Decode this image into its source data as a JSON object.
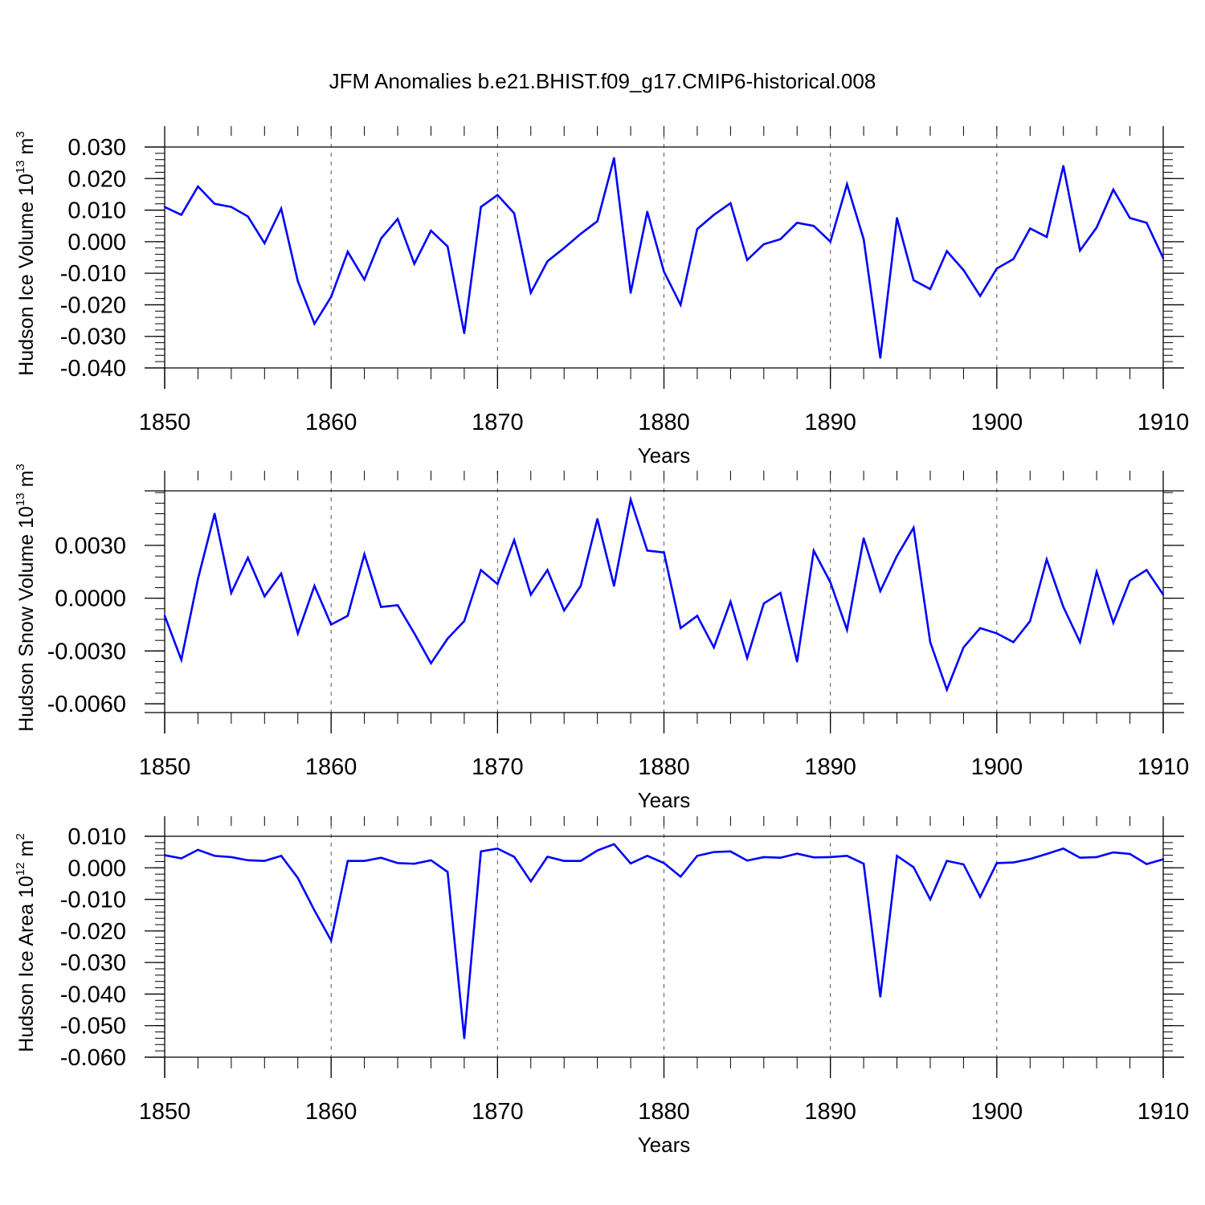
{
  "figure_title": "JFM Anomalies b.e21.BHIST.f09_g17.CMIP6-historical.008",
  "colors": {
    "series": "#0000ff",
    "axes": "#000000",
    "grid": "#555555"
  },
  "chart_data": [
    {
      "type": "line",
      "title": "JFM Anomalies b.e21.BHIST.f09_g17.CMIP6-historical.008",
      "ylabel": "Hudson Ice Volume",
      "yunit_base": "10",
      "yunit_exp": "13",
      "yunit_suffix": "m",
      "yunit_suffix_exp": "3",
      "xlabel": "Years",
      "xlim": [
        1850,
        1910
      ],
      "ylim": [
        -0.04,
        0.03
      ],
      "xticks": [
        "1850",
        "1860",
        "1870",
        "1880",
        "1890",
        "1900",
        "1910"
      ],
      "yticks": [
        "0.030",
        "0.020",
        "0.010",
        "0.000",
        "-0.010",
        "-0.020",
        "-0.030",
        "-0.040"
      ],
      "x_start": 1850,
      "values": [
        0.011,
        0.0085,
        0.0175,
        0.012,
        0.011,
        0.008,
        -0.0005,
        0.0105,
        -0.0125,
        -0.026,
        -0.0175,
        -0.0032,
        -0.012,
        0.001,
        0.0072,
        -0.007,
        0.0035,
        -0.0015,
        -0.029,
        0.011,
        0.0148,
        0.009,
        -0.0162,
        -0.0062,
        -0.002,
        0.0025,
        0.0065,
        0.0265,
        -0.0162,
        0.0095,
        -0.0095,
        -0.02,
        0.004,
        0.0085,
        0.0122,
        -0.0058,
        -0.0008,
        0.0008,
        0.006,
        0.005,
        0.0,
        0.0182,
        0.0008,
        -0.0368,
        0.0075,
        -0.0122,
        -0.015,
        -0.003,
        -0.009,
        -0.0172,
        -0.0085,
        -0.0055,
        0.0042,
        0.0015,
        0.024,
        -0.0028,
        0.0045,
        0.0165,
        0.0075,
        0.006,
        -0.0052
      ]
    },
    {
      "type": "line",
      "ylabel": "Hudson Snow Volume",
      "yunit_base": "10",
      "yunit_exp": "13",
      "yunit_suffix": "m",
      "yunit_suffix_exp": "3",
      "xlabel": "Years",
      "xlim": [
        1850,
        1910
      ],
      "ylim": [
        -0.0065,
        0.0061
      ],
      "xticks": [
        "1850",
        "1860",
        "1870",
        "1880",
        "1890",
        "1900",
        "1910"
      ],
      "yticks": [
        "0.0030",
        "0.0000",
        "-0.0030",
        "-0.0060"
      ],
      "ytick_values": [
        0.003,
        0.0,
        -0.003,
        -0.006
      ],
      "x_start": 1850,
      "values": [
        -0.001,
        -0.0035,
        0.0011,
        0.0048,
        0.0003,
        0.0023,
        0.0001,
        0.0014,
        -0.002,
        0.0007,
        -0.0015,
        -0.001,
        0.0025,
        -0.0005,
        -0.0004,
        -0.002,
        -0.0037,
        -0.0023,
        -0.0013,
        0.0016,
        0.0008,
        0.0033,
        0.0002,
        0.0016,
        -0.0007,
        0.0007,
        0.0045,
        0.0007,
        0.0056,
        0.0027,
        0.0026,
        -0.0017,
        -0.001,
        -0.0028,
        -0.0002,
        -0.0034,
        -0.0003,
        0.0003,
        -0.0036,
        0.0027,
        0.0009,
        -0.0018,
        0.0034,
        0.0004,
        0.0024,
        0.004,
        -0.0025,
        -0.0052,
        -0.0028,
        -0.0017,
        -0.002,
        -0.0025,
        -0.0013,
        0.0022,
        -0.0005,
        -0.0025,
        0.0015,
        -0.0014,
        0.001,
        0.0016,
        0.0002
      ]
    },
    {
      "type": "line",
      "ylabel": "Hudson Ice Area",
      "yunit_base": "10",
      "yunit_exp": "12",
      "yunit_suffix": "m",
      "yunit_suffix_exp": "2",
      "xlabel": "Years",
      "xlim": [
        1850,
        1910
      ],
      "ylim": [
        -0.06,
        0.01
      ],
      "xticks": [
        "1850",
        "1860",
        "1870",
        "1880",
        "1890",
        "1900",
        "1910"
      ],
      "yticks": [
        "0.010",
        "0.000",
        "-0.010",
        "-0.020",
        "-0.030",
        "-0.040",
        "-0.050",
        "-0.060"
      ],
      "x_start": 1850,
      "values": [
        0.004,
        0.003,
        0.0057,
        0.0038,
        0.0034,
        0.0024,
        0.0022,
        0.0038,
        -0.0032,
        -0.0135,
        -0.023,
        0.0022,
        0.0022,
        0.0032,
        0.0015,
        0.0013,
        0.0024,
        -0.0013,
        -0.054,
        0.0052,
        0.0061,
        0.0035,
        -0.0043,
        0.0035,
        0.0022,
        0.0022,
        0.0055,
        0.0075,
        0.0014,
        0.0038,
        0.0015,
        -0.0028,
        0.0038,
        0.005,
        0.0052,
        0.0023,
        0.0034,
        0.0032,
        0.0045,
        0.0033,
        0.0034,
        0.0038,
        0.0013,
        -0.0408,
        0.0038,
        0.0002,
        -0.01,
        0.0022,
        0.0011,
        -0.0092,
        0.0015,
        0.0017,
        0.0028,
        0.0044,
        0.0061,
        0.0032,
        0.0034,
        0.0049,
        0.0044,
        0.0012,
        0.0027
      ]
    }
  ]
}
